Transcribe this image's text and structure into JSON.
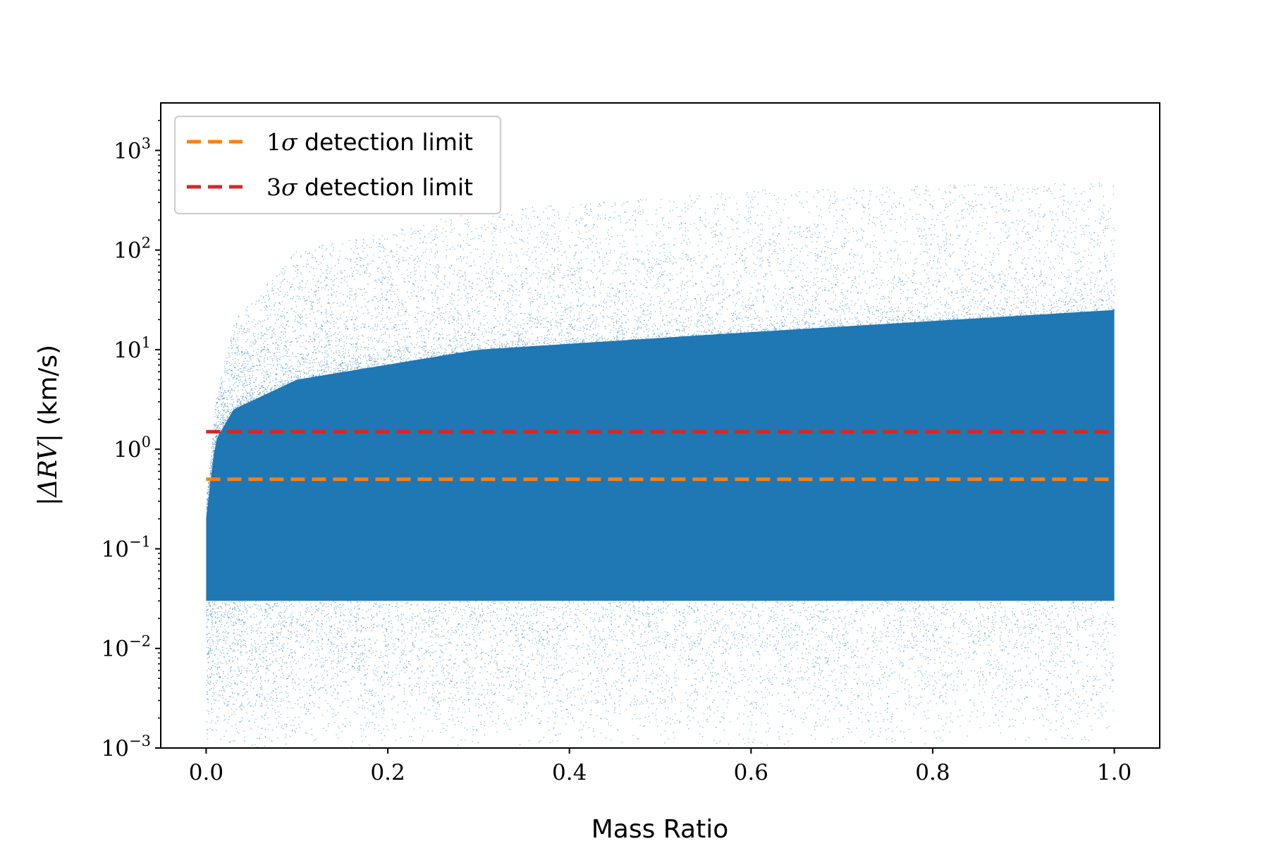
{
  "chart_data": {
    "type": "scatter",
    "title": "",
    "xlabel": "Mass Ratio",
    "ylabel_prefix": "|ΔRV|",
    "ylabel_suffix": " (km/s)",
    "xlim": [
      -0.05,
      1.05
    ],
    "ylim": [
      0.001,
      3000
    ],
    "yscale": "log",
    "grid": false,
    "legend_position": "top-left",
    "x_ticks": [
      {
        "value": 0.0,
        "label": "0.0"
      },
      {
        "value": 0.2,
        "label": "0.2"
      },
      {
        "value": 0.4,
        "label": "0.4"
      },
      {
        "value": 0.6,
        "label": "0.6"
      },
      {
        "value": 0.8,
        "label": "0.8"
      },
      {
        "value": 1.0,
        "label": "1.0"
      }
    ],
    "y_ticks": [
      {
        "value": 0.001,
        "base": "10",
        "exp": "−3"
      },
      {
        "value": 0.01,
        "base": "10",
        "exp": "−2"
      },
      {
        "value": 0.1,
        "base": "10",
        "exp": "−1"
      },
      {
        "value": 1,
        "base": "10",
        "exp": "0"
      },
      {
        "value": 10,
        "base": "10",
        "exp": "1"
      },
      {
        "value": 100,
        "base": "10",
        "exp": "2"
      },
      {
        "value": 1000,
        "base": "10",
        "exp": "3"
      }
    ],
    "scatter_series": {
      "color": "#1f77b4",
      "x_range": [
        0.0,
        1.0
      ],
      "envelope": [
        {
          "q": 0.0,
          "lo": 0.001,
          "core_hi": 0.2,
          "hi": 0.3
        },
        {
          "q": 0.01,
          "lo": 0.001,
          "core_hi": 1.2,
          "hi": 3
        },
        {
          "q": 0.03,
          "lo": 0.001,
          "core_hi": 2.5,
          "hi": 20
        },
        {
          "q": 0.1,
          "lo": 0.001,
          "core_hi": 5,
          "hi": 100
        },
        {
          "q": 0.3,
          "lo": 0.001,
          "core_hi": 10,
          "hi": 250
        },
        {
          "q": 0.6,
          "lo": 0.001,
          "core_hi": 15,
          "hi": 400
        },
        {
          "q": 1.0,
          "lo": 0.001,
          "core_hi": 25,
          "hi": 500
        }
      ]
    },
    "lines": [
      {
        "name_prefix": "1",
        "name_suffix": " detection limit",
        "y": 0.5,
        "color": "#ff7f0e",
        "dash": "dashed"
      },
      {
        "name_prefix": "3",
        "name_suffix": " detection limit",
        "y": 1.5,
        "color": "#d62728",
        "dash": "dashed"
      }
    ],
    "legend_sigma": "σ"
  }
}
